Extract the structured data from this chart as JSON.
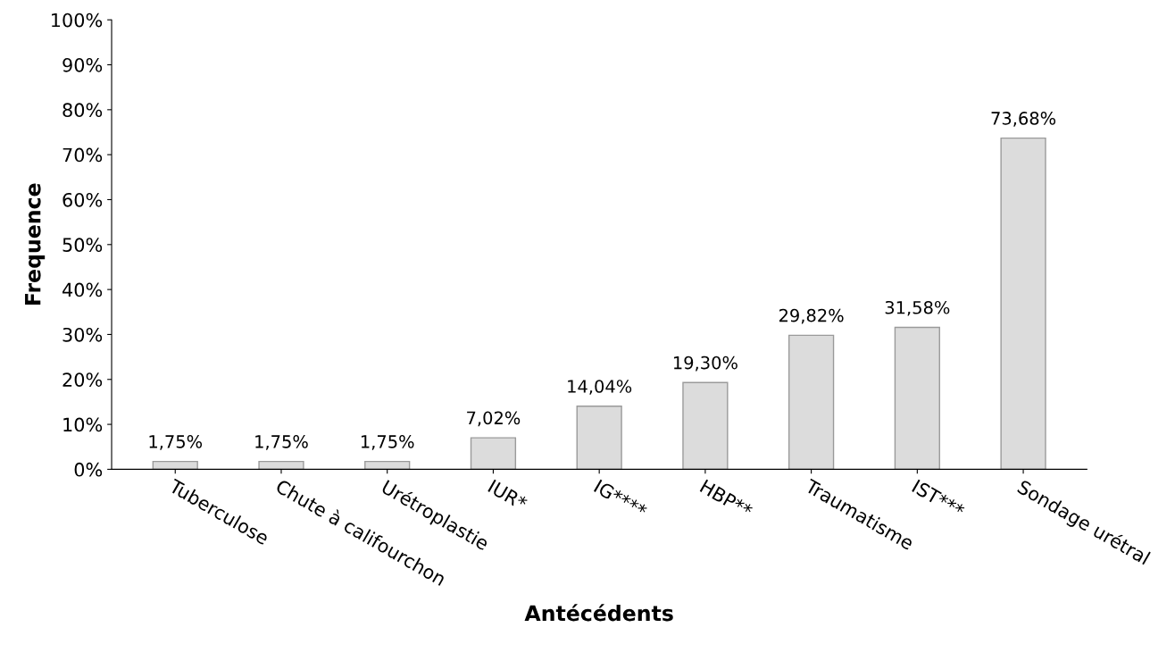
{
  "chart_data": {
    "type": "bar",
    "xlabel": "Antécédents",
    "ylabel": "Frequence",
    "categories": [
      "Tuberculose",
      "Chute à califourchon",
      "Urétroplastie",
      "IUR*",
      "IG****",
      "HBP**",
      "Traumatisme",
      "IST***",
      "Sondage urétral"
    ],
    "values": [
      1.75,
      1.75,
      1.75,
      7.02,
      14.04,
      19.3,
      29.82,
      31.58,
      73.68
    ],
    "value_labels": [
      "1,75%",
      "1,75%",
      "1,75%",
      "7,02%",
      "14,04%",
      "19,30%",
      "29,82%",
      "31,58%",
      "73,68%"
    ],
    "color": "#dcdcdc",
    "ylim": [
      0,
      100
    ],
    "yticks": [
      {
        "value": 0,
        "label": "0%"
      },
      {
        "value": 10,
        "label": "10%"
      },
      {
        "value": 20,
        "label": "20%"
      },
      {
        "value": 30,
        "label": "30%"
      },
      {
        "value": 40,
        "label": "40%"
      },
      {
        "value": 50,
        "label": "50%"
      },
      {
        "value": 60,
        "label": "60%"
      },
      {
        "value": 70,
        "label": "70%"
      },
      {
        "value": 80,
        "label": "80%"
      },
      {
        "value": 90,
        "label": "90%"
      },
      {
        "value": 100,
        "label": "100%"
      }
    ],
    "grid": false
  }
}
